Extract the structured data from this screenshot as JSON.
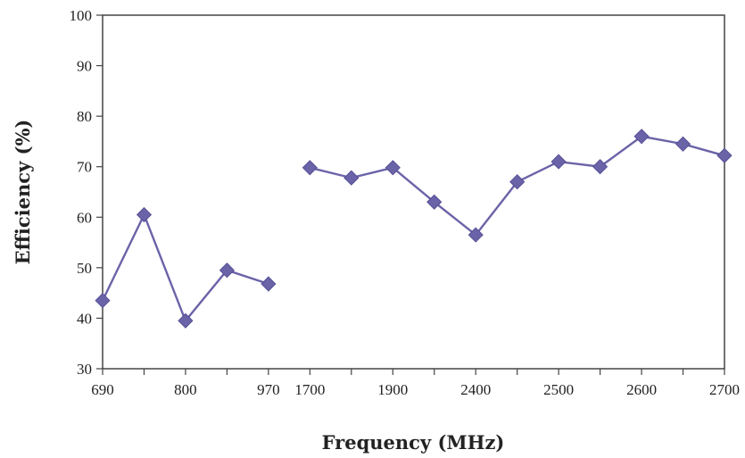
{
  "chart_data": {
    "type": "line",
    "title": "",
    "xlabel": "Frequency (MHz)",
    "ylabel": "Efficiency (%)",
    "ylim": [
      30,
      100
    ],
    "yticks": [
      30,
      40,
      50,
      60,
      70,
      80,
      90,
      100
    ],
    "categories": [
      "690",
      "",
      "800",
      "",
      "970",
      "1700",
      "",
      "1900",
      "",
      "2400",
      "",
      "2500",
      "",
      "2600",
      "",
      "2700"
    ],
    "grid": false,
    "legend": "none",
    "marker": "diamond",
    "color": "#6B63A8",
    "segments": [
      {
        "start_index": 0,
        "values": [
          43.5,
          60.5,
          39.5,
          49.5,
          46.8
        ]
      },
      {
        "start_index": 5,
        "values": [
          69.8,
          67.8,
          69.8,
          63.0,
          56.5,
          67.0,
          71.0,
          70.0,
          76.0,
          74.5,
          72.2
        ]
      }
    ]
  }
}
